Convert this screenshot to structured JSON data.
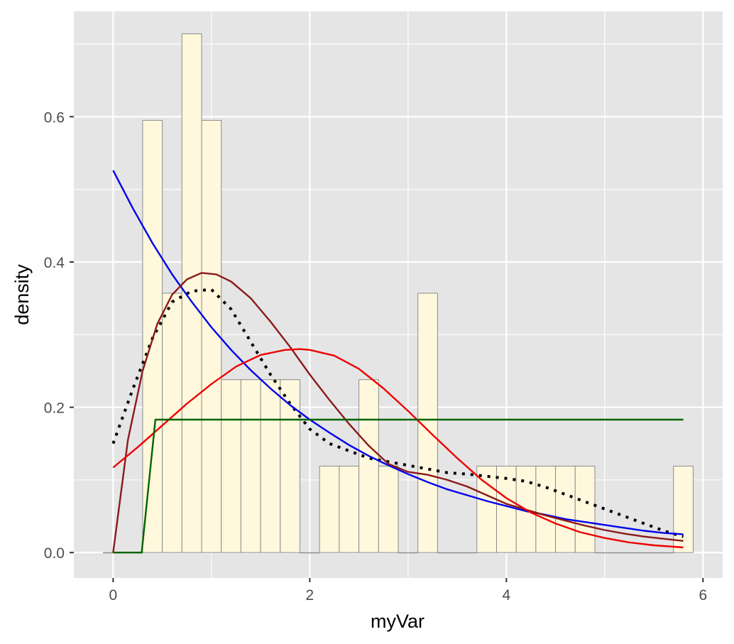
{
  "chart_data": {
    "type": "bar",
    "subtype": "histogram-with-density-curves",
    "xlabel": "myVar",
    "ylabel": "density",
    "xlim": [
      -0.4,
      6.2
    ],
    "ylim": [
      -0.035,
      0.745
    ],
    "x_ticks": [
      0,
      2,
      4,
      6
    ],
    "x_tick_labels": [
      "0",
      "2",
      "4",
      "6"
    ],
    "y_ticks": [
      0.0,
      0.2,
      0.4,
      0.6
    ],
    "y_tick_labels": [
      "0.0",
      "0.2",
      "0.4",
      "0.6"
    ],
    "grid": true,
    "panel_background": "#e5e5e5",
    "grid_color": "#ffffff",
    "bar_fill": "#fff8dc",
    "bar_outline": "#8c8c8c",
    "histogram": {
      "bins": [
        {
          "x0": -0.1,
          "x1": 0.3,
          "density": 0.0
        },
        {
          "x0": 0.3,
          "x1": 0.5,
          "density": 0.595
        },
        {
          "x0": 0.5,
          "x1": 0.7,
          "density": 0.357
        },
        {
          "x0": 0.7,
          "x1": 0.9,
          "density": 0.714
        },
        {
          "x0": 0.9,
          "x1": 1.1,
          "density": 0.595
        },
        {
          "x0": 1.1,
          "x1": 1.3,
          "density": 0.238
        },
        {
          "x0": 1.3,
          "x1": 1.5,
          "density": 0.238
        },
        {
          "x0": 1.5,
          "x1": 1.7,
          "density": 0.238
        },
        {
          "x0": 1.7,
          "x1": 1.9,
          "density": 0.238
        },
        {
          "x0": 1.9,
          "x1": 2.1,
          "density": 0.0
        },
        {
          "x0": 2.1,
          "x1": 2.3,
          "density": 0.119
        },
        {
          "x0": 2.3,
          "x1": 2.5,
          "density": 0.119
        },
        {
          "x0": 2.5,
          "x1": 2.7,
          "density": 0.238
        },
        {
          "x0": 2.7,
          "x1": 2.9,
          "density": 0.119
        },
        {
          "x0": 2.9,
          "x1": 3.1,
          "density": 0.0
        },
        {
          "x0": 3.1,
          "x1": 3.3,
          "density": 0.357
        },
        {
          "x0": 3.3,
          "x1": 3.7,
          "density": 0.0
        },
        {
          "x0": 3.7,
          "x1": 3.9,
          "density": 0.119
        },
        {
          "x0": 3.9,
          "x1": 4.1,
          "density": 0.119
        },
        {
          "x0": 4.1,
          "x1": 4.3,
          "density": 0.119
        },
        {
          "x0": 4.3,
          "x1": 4.5,
          "density": 0.119
        },
        {
          "x0": 4.5,
          "x1": 4.7,
          "density": 0.119
        },
        {
          "x0": 4.7,
          "x1": 4.9,
          "density": 0.119
        },
        {
          "x0": 4.9,
          "x1": 5.7,
          "density": 0.0
        },
        {
          "x0": 5.7,
          "x1": 5.9,
          "density": 0.119
        }
      ]
    },
    "series": [
      {
        "color": "#000000",
        "style": "dotted",
        "width": 4,
        "x": [
          0,
          0.2,
          0.4,
          0.6,
          0.8,
          1.0,
          1.2,
          1.4,
          1.6,
          1.8,
          2.0,
          2.2,
          2.4,
          2.6,
          2.8,
          3.0,
          3.2,
          3.4,
          3.6,
          3.8,
          4.0,
          4.2,
          4.4,
          4.6,
          4.8,
          5.0,
          5.2,
          5.4,
          5.6,
          5.8
        ],
        "y": [
          0.15,
          0.225,
          0.295,
          0.345,
          0.36,
          0.362,
          0.335,
          0.29,
          0.245,
          0.205,
          0.17,
          0.15,
          0.14,
          0.13,
          0.125,
          0.12,
          0.115,
          0.11,
          0.108,
          0.105,
          0.102,
          0.098,
          0.09,
          0.08,
          0.07,
          0.06,
          0.05,
          0.04,
          0.03,
          0.022
        ]
      },
      {
        "color": "#0000ee",
        "style": "solid",
        "width": 2.4,
        "x": [
          0,
          0.2,
          0.4,
          0.6,
          0.8,
          1.0,
          1.2,
          1.4,
          1.6,
          1.8,
          2.0,
          2.2,
          2.4,
          2.6,
          2.8,
          3.0,
          3.2,
          3.4,
          3.6,
          3.8,
          4.0,
          4.2,
          4.4,
          4.6,
          4.8,
          5.0,
          5.2,
          5.4,
          5.6,
          5.8
        ],
        "y": [
          0.526,
          0.474,
          0.426,
          0.383,
          0.345,
          0.31,
          0.279,
          0.251,
          0.226,
          0.203,
          0.183,
          0.165,
          0.148,
          0.133,
          0.12,
          0.108,
          0.097,
          0.087,
          0.079,
          0.071,
          0.064,
          0.057,
          0.052,
          0.046,
          0.042,
          0.038,
          0.034,
          0.03,
          0.027,
          0.025
        ]
      },
      {
        "color": "#8b1a1a",
        "style": "solid",
        "width": 2.4,
        "x": [
          0,
          0.15,
          0.3,
          0.45,
          0.6,
          0.75,
          0.9,
          1.05,
          1.2,
          1.4,
          1.6,
          1.8,
          2.0,
          2.2,
          2.4,
          2.6,
          2.8,
          3.0,
          3.2,
          3.4,
          3.6,
          3.8,
          4.0,
          4.2,
          4.4,
          4.6,
          4.8,
          5.0,
          5.2,
          5.4,
          5.6,
          5.8
        ],
        "y": [
          0.0,
          0.155,
          0.25,
          0.315,
          0.355,
          0.376,
          0.385,
          0.383,
          0.373,
          0.35,
          0.318,
          0.283,
          0.245,
          0.21,
          0.177,
          0.147,
          0.122,
          0.111,
          0.107,
          0.1,
          0.091,
          0.079,
          0.067,
          0.059,
          0.051,
          0.044,
          0.037,
          0.031,
          0.026,
          0.022,
          0.019,
          0.016
        ]
      },
      {
        "color": "#ee0000",
        "style": "solid",
        "width": 2.4,
        "x": [
          0,
          0.25,
          0.5,
          0.75,
          1.0,
          1.25,
          1.5,
          1.75,
          1.9,
          2.0,
          2.25,
          2.5,
          2.75,
          3.0,
          3.25,
          3.5,
          3.75,
          4.0,
          4.25,
          4.5,
          4.75,
          5.0,
          5.25,
          5.5,
          5.8
        ],
        "y": [
          0.117,
          0.145,
          0.175,
          0.205,
          0.232,
          0.256,
          0.272,
          0.279,
          0.28,
          0.279,
          0.271,
          0.253,
          0.226,
          0.195,
          0.162,
          0.13,
          0.1,
          0.075,
          0.055,
          0.04,
          0.028,
          0.02,
          0.014,
          0.01,
          0.007
        ]
      },
      {
        "color": "#006400",
        "style": "solid",
        "width": 2.4,
        "x": [
          0,
          0.29,
          0.43,
          5.8
        ],
        "y": [
          0.0,
          0.0,
          0.183,
          0.183
        ]
      }
    ]
  }
}
